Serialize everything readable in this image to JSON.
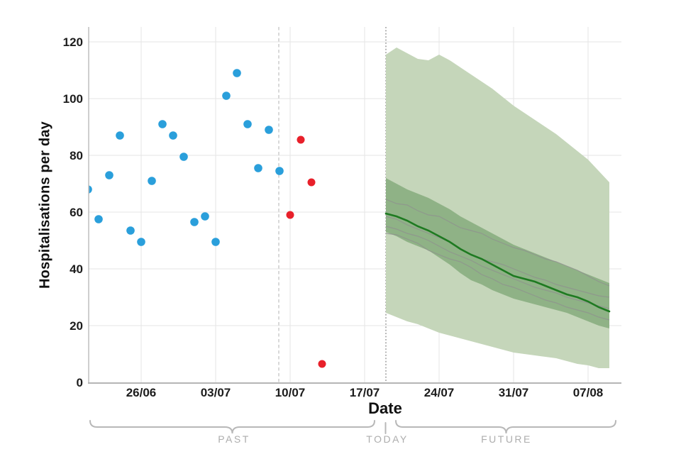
{
  "page": {
    "background": "#ffffff"
  },
  "chart_data": {
    "type": "scatter+fan-forecast",
    "title": "",
    "xlabel": "Date",
    "ylabel": "Hospitalisations per day",
    "ylim": [
      0,
      125
    ],
    "yticks": [
      0,
      20,
      40,
      60,
      80,
      100,
      120
    ],
    "xticks": [
      {
        "label": "26/06",
        "day": 5
      },
      {
        "label": "03/07",
        "day": 12
      },
      {
        "label": "10/07",
        "day": 19
      },
      {
        "label": "17/07",
        "day": 26
      },
      {
        "label": "24/07",
        "day": 33
      },
      {
        "label": "31/07",
        "day": 40
      },
      {
        "label": "07/08",
        "day": 47
      }
    ],
    "grid": true,
    "day0_date": "21/06",
    "observed_past": {
      "name": "observed-hospitalisations-past",
      "color": "#2a9fdb",
      "points": [
        {
          "date": "21/06",
          "day": 0,
          "value": 68
        },
        {
          "date": "22/06",
          "day": 1,
          "value": 57.5
        },
        {
          "date": "23/06",
          "day": 2,
          "value": 73
        },
        {
          "date": "24/06",
          "day": 3,
          "value": 87
        },
        {
          "date": "25/06",
          "day": 4,
          "value": 53.5
        },
        {
          "date": "26/06",
          "day": 5,
          "value": 49.5
        },
        {
          "date": "27/06",
          "day": 6,
          "value": 71
        },
        {
          "date": "28/06",
          "day": 7,
          "value": 91
        },
        {
          "date": "29/06",
          "day": 8,
          "value": 87
        },
        {
          "date": "30/06",
          "day": 9,
          "value": 79.5
        },
        {
          "date": "01/07",
          "day": 10,
          "value": 56.5
        },
        {
          "date": "02/07",
          "day": 11,
          "value": 58.5
        },
        {
          "date": "03/07",
          "day": 12,
          "value": 49.5
        },
        {
          "date": "04/07",
          "day": 13,
          "value": 101
        },
        {
          "date": "05/07",
          "day": 14,
          "value": 109
        },
        {
          "date": "06/07",
          "day": 15,
          "value": 91
        },
        {
          "date": "07/07",
          "day": 16,
          "value": 75.5
        },
        {
          "date": "08/07",
          "day": 17,
          "value": 89
        },
        {
          "date": "09/07",
          "day": 18,
          "value": 74.5
        }
      ]
    },
    "observed_recent": {
      "name": "observed-hospitalisations-recent-incomplete",
      "color": "#e8202a",
      "points": [
        {
          "date": "10/07",
          "day": 19,
          "value": 59
        },
        {
          "date": "11/07",
          "day": 20,
          "value": 85.5
        },
        {
          "date": "12/07",
          "day": 21,
          "value": 70.5
        },
        {
          "date": "13/07",
          "day": 22,
          "value": 6.5
        }
      ]
    },
    "cutoff_line": {
      "date": "09/07",
      "day": 18,
      "style": "dashed",
      "color": "#c9c9c9"
    },
    "today_line": {
      "date": "19/07",
      "day": 28,
      "style": "dotted",
      "color": "#9e9e9e"
    },
    "forecast": {
      "start_day": 28,
      "start_date": "19/07",
      "end_date": "09/08",
      "median": {
        "color": "#1e7a21",
        "values": [
          59.5,
          58.5,
          57,
          55,
          53.5,
          51.5,
          49.5,
          47,
          45,
          43.5,
          41.5,
          39.5,
          37.5,
          36.5,
          35.5,
          34,
          32.5,
          31,
          30,
          28.5,
          26.5,
          25
        ]
      },
      "inner_band": {
        "color": "#8fb286",
        "upper": [
          72,
          70,
          68,
          66.5,
          65,
          63,
          61,
          58.5,
          56.5,
          54.5,
          52.5,
          50.5,
          48.5,
          47,
          45.5,
          44,
          42.5,
          41,
          39.5,
          38,
          36.5,
          35
        ],
        "lower": [
          53,
          51.5,
          49.5,
          48,
          46.5,
          44,
          41.5,
          38.5,
          36,
          34.5,
          32.5,
          31,
          29.5,
          28.5,
          27.5,
          26.5,
          25.5,
          24.5,
          23,
          21.5,
          20,
          19
        ]
      },
      "outer_band": {
        "color": "#c5d6ba",
        "upper": [
          115.5,
          118,
          116,
          114,
          113.5,
          115.5,
          113.5,
          111,
          108.5,
          106,
          103.5,
          100.5,
          97.5,
          95,
          92.5,
          90,
          87.5,
          84.5,
          81.5,
          78.5,
          74.5,
          70.5
        ],
        "lower": [
          24.5,
          23,
          21.5,
          20.5,
          19,
          17.5,
          16.5,
          15.5,
          14.5,
          13.5,
          12.5,
          11.5,
          10.5,
          10,
          9.5,
          9,
          8.5,
          7.5,
          6.5,
          6,
          5,
          5
        ]
      },
      "trajectories": {
        "color": "#8f8f8f",
        "lines": [
          [
            64.5,
            63,
            62.5,
            60.5,
            59,
            58.5,
            56.5,
            54.5,
            53.5,
            52.5,
            50.5,
            49,
            47.5,
            46.5,
            45,
            43.5,
            42.5,
            41,
            39.5,
            37.5,
            35.5,
            34
          ],
          [
            58.5,
            57.5,
            55.5,
            54,
            52.5,
            51,
            49.5,
            47,
            45,
            43.5,
            42.5,
            41.5,
            40,
            38.5,
            37,
            36,
            34.5,
            33.5,
            32.5,
            31.5,
            30.5,
            30
          ],
          [
            55,
            54,
            52.5,
            51.5,
            50,
            48,
            46,
            44.5,
            43,
            41,
            39.5,
            38,
            36.5,
            35,
            33.5,
            32.5,
            31.5,
            30,
            29,
            28,
            27,
            26
          ],
          [
            52.5,
            52,
            50.5,
            49,
            46.5,
            45,
            43.5,
            42.5,
            40.5,
            38,
            36.5,
            34.5,
            33.5,
            32,
            30.5,
            29,
            28,
            26.5,
            25.5,
            24.5,
            23,
            22
          ]
        ]
      }
    },
    "annotations": {
      "past": "PAST",
      "today": "TODAY",
      "future": "FUTURE"
    }
  }
}
